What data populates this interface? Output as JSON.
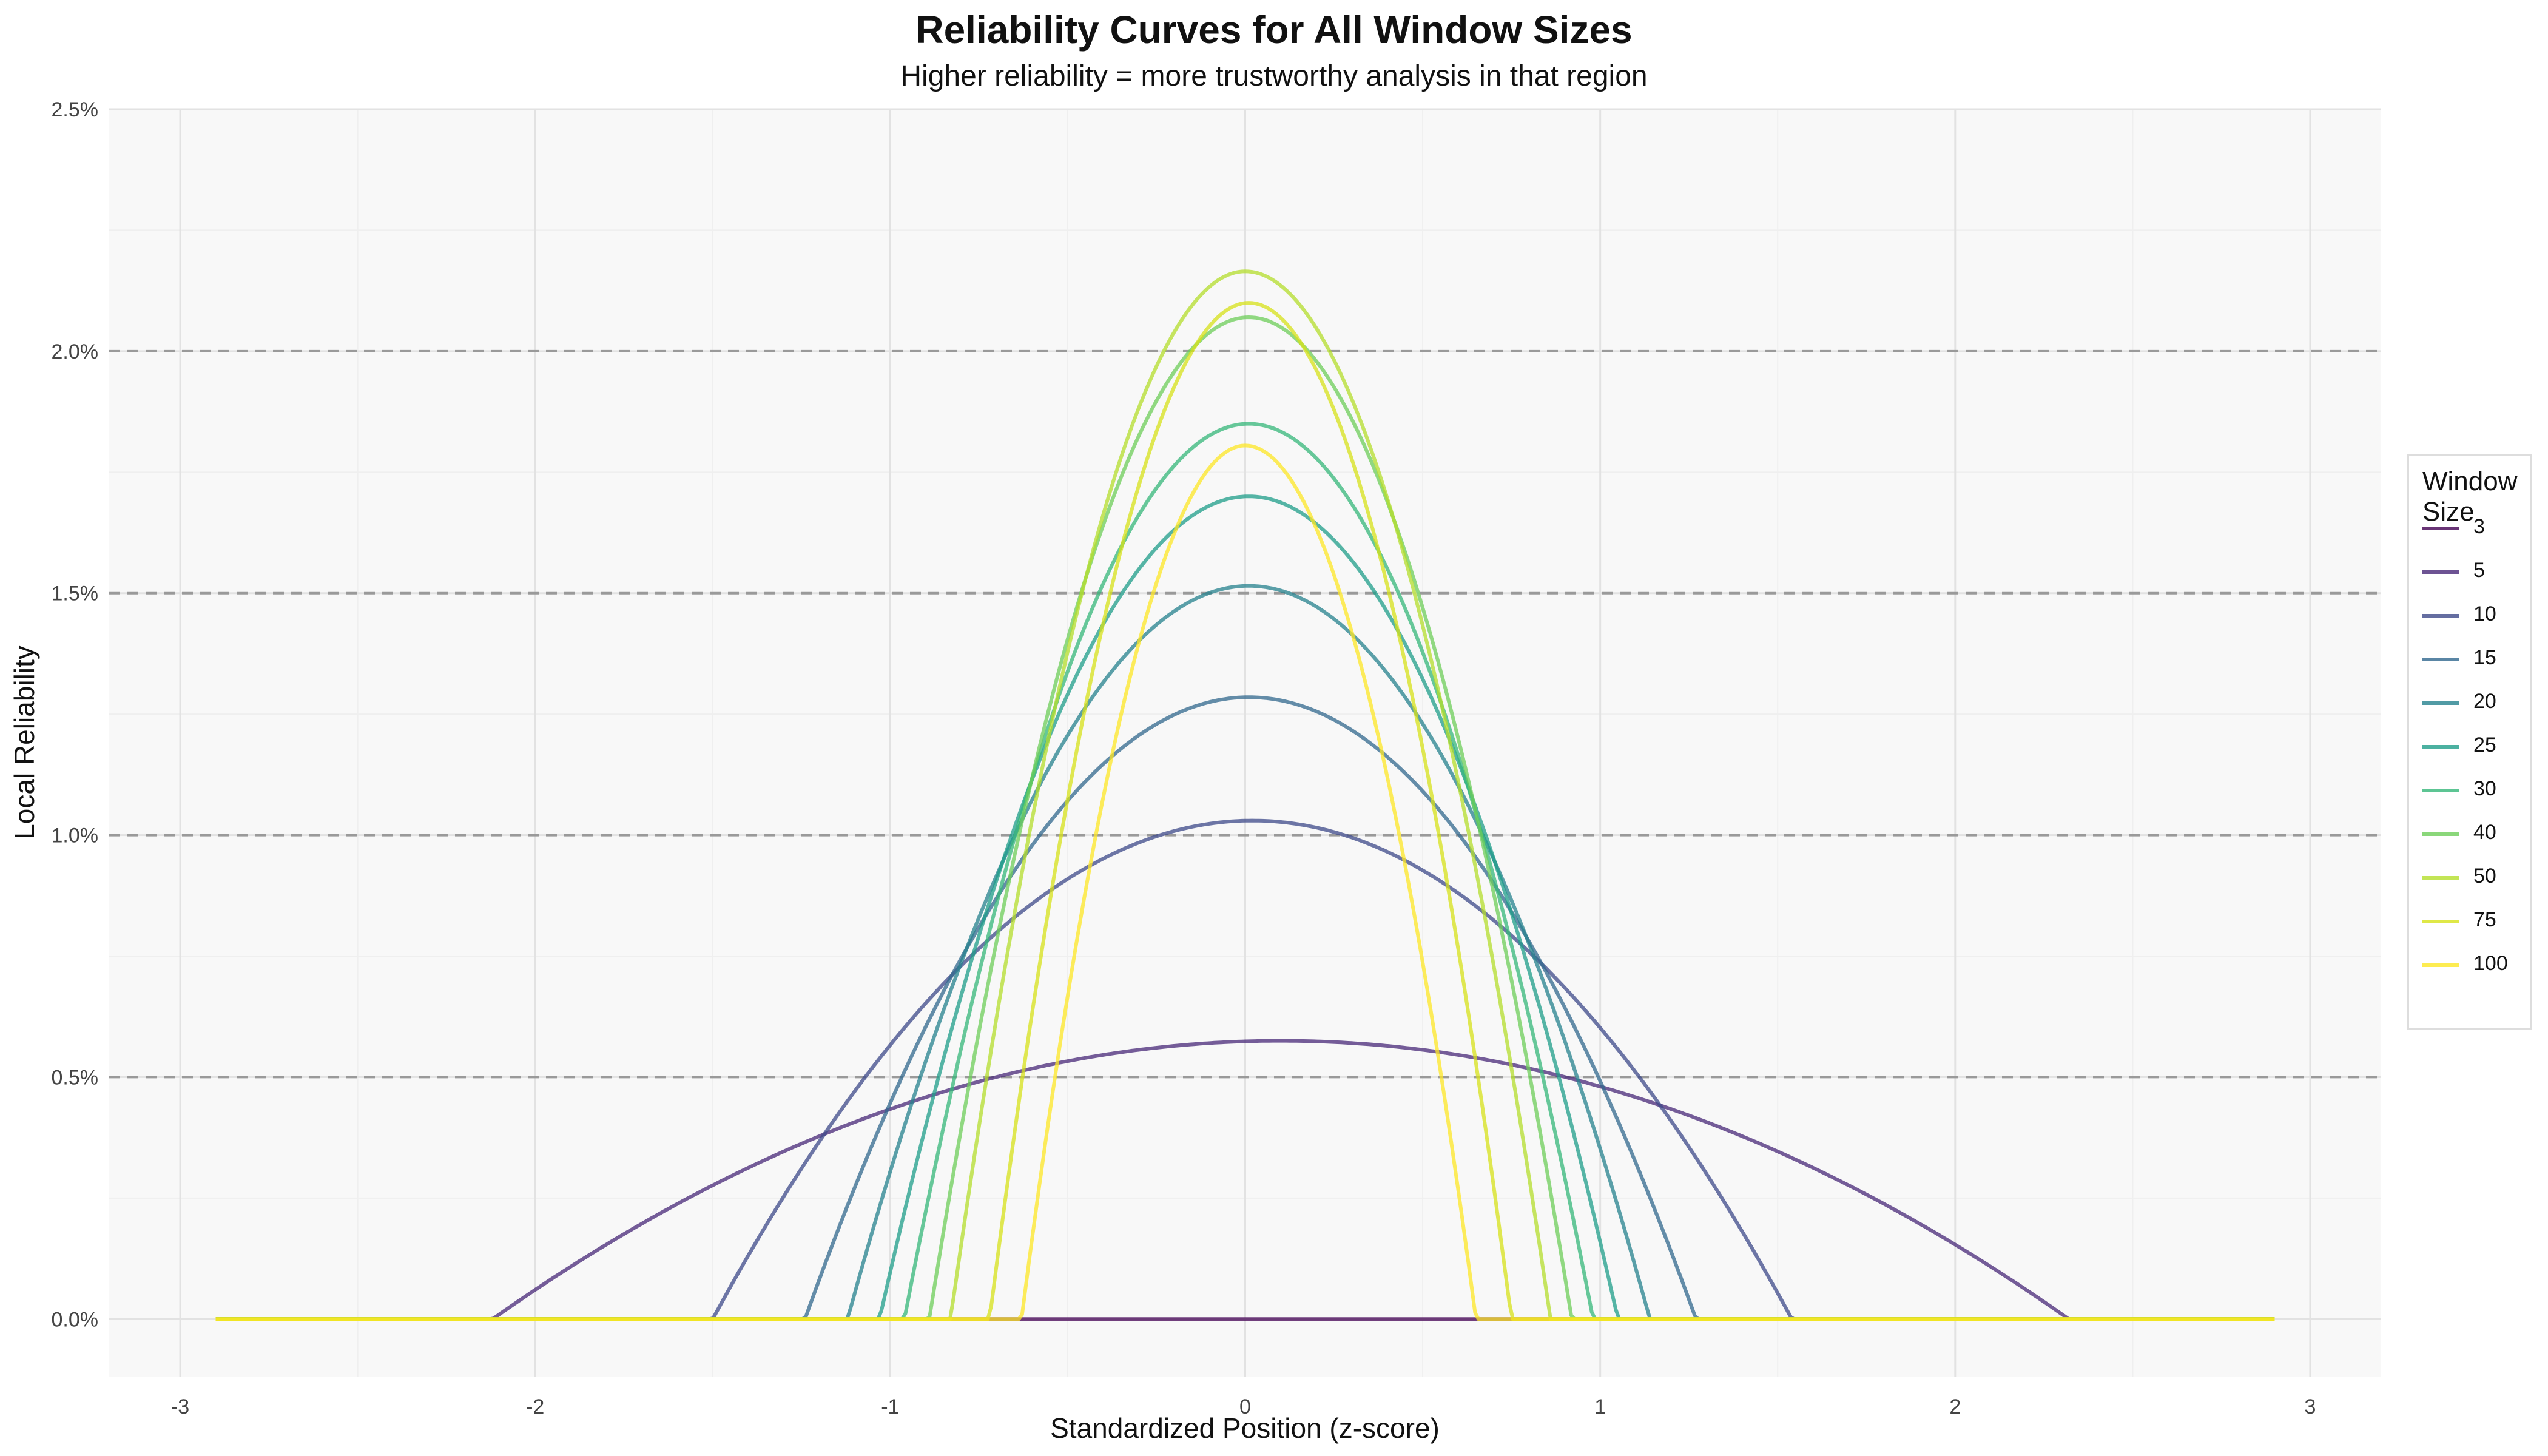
{
  "chart_data": {
    "type": "line",
    "title": "Reliability Curves for All Window Sizes",
    "subtitle": "Higher reliability = more trustworthy analysis in that region",
    "xlabel": "Standardized Position (z-score)",
    "ylabel": "Local Reliability",
    "xlim": [
      -3.2,
      3.2
    ],
    "ylim": [
      -0.12,
      2.5
    ],
    "x_ticks": [
      -3,
      -2,
      -1,
      0,
      1,
      2,
      3
    ],
    "x_tick_labels": [
      "-3",
      "-2",
      "-1",
      "0",
      "1",
      "2",
      "3"
    ],
    "y_ticks": [
      0,
      0.5,
      1.0,
      1.5,
      2.0,
      2.5
    ],
    "y_tick_labels": [
      "0.0%",
      "0.5%",
      "1.0%",
      "1.5%",
      "2.0%",
      "2.5%"
    ],
    "reference_lines_y": [
      0.5,
      1.0,
      1.5,
      2.0
    ],
    "x_range": [
      -2.9,
      2.9
    ],
    "grid": true,
    "legend_title": "Window\nSize",
    "legend_position": "right",
    "series": [
      {
        "name": "3",
        "color": "#440154",
        "peak_x": 0.0,
        "peak": 0.0,
        "left": -0.63,
        "right": 0.65
      },
      {
        "name": "5",
        "color": "#482878",
        "peak_x": 0.1,
        "peak": 0.575,
        "left": -2.12,
        "right": 2.32
      },
      {
        "name": "10",
        "color": "#3E4A89",
        "peak_x": 0.02,
        "peak": 1.03,
        "left": -1.5,
        "right": 1.54
      },
      {
        "name": "15",
        "color": "#31688E",
        "peak_x": 0.01,
        "peak": 1.285,
        "left": -1.24,
        "right": 1.27
      },
      {
        "name": "20",
        "color": "#26828E",
        "peak_x": 0.01,
        "peak": 1.515,
        "left": -1.12,
        "right": 1.14
      },
      {
        "name": "25",
        "color": "#1F9E89",
        "peak_x": 0.01,
        "peak": 1.7,
        "left": -1.03,
        "right": 1.05
      },
      {
        "name": "30",
        "color": "#35B779",
        "peak_x": 0.01,
        "peak": 1.85,
        "left": -0.96,
        "right": 0.98
      },
      {
        "name": "40",
        "color": "#6DCD59",
        "peak_x": 0.01,
        "peak": 2.07,
        "left": -0.89,
        "right": 0.92
      },
      {
        "name": "50",
        "color": "#B4DE2C",
        "peak_x": 0.0,
        "peak": 2.165,
        "left": -0.83,
        "right": 0.86
      },
      {
        "name": "75",
        "color": "#D7E219",
        "peak_x": 0.01,
        "peak": 2.1,
        "left": -0.72,
        "right": 0.75
      },
      {
        "name": "100",
        "color": "#FDE725",
        "peak_x": 0.0,
        "peak": 1.805,
        "left": -0.63,
        "right": 0.65
      }
    ]
  }
}
